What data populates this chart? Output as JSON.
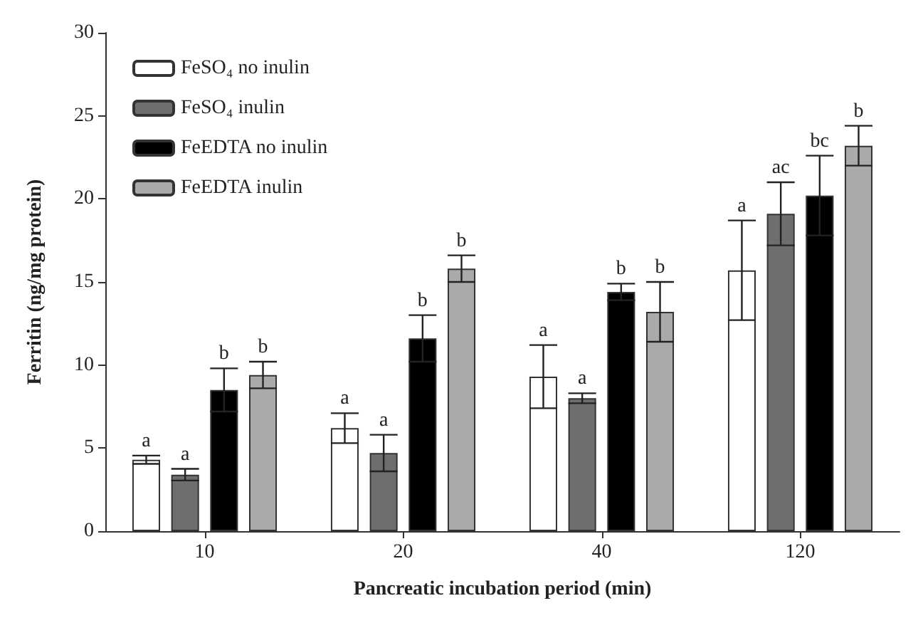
{
  "chart_data": {
    "type": "bar",
    "xlabel": "Pancreatic incubation period (min)",
    "ylabel": "Ferritin (ng/mg protein)",
    "categories": [
      "10",
      "20",
      "40",
      "120"
    ],
    "series": [
      {
        "name": "FeSO₄ no inulin",
        "color": "#ffffff",
        "values": [
          4.3,
          6.2,
          9.3,
          15.7
        ],
        "errors": [
          0.25,
          0.9,
          1.9,
          3.0
        ],
        "value_labels": [
          "a",
          "a",
          "a",
          "a"
        ]
      },
      {
        "name": "FeSO₄ inulin",
        "color": "#6e6e6e",
        "values": [
          3.4,
          4.7,
          8.0,
          19.1
        ],
        "errors": [
          0.35,
          1.1,
          0.3,
          1.9
        ],
        "value_labels": [
          "a",
          "a",
          "a",
          "ac"
        ]
      },
      {
        "name": "FeEDTA no inulin",
        "color": "#000000",
        "values": [
          8.5,
          11.6,
          14.4,
          20.2
        ],
        "errors": [
          1.3,
          1.4,
          0.5,
          2.4
        ],
        "value_labels": [
          "b",
          "b",
          "b",
          "bc"
        ]
      },
      {
        "name": "FeEDTA inulin",
        "color": "#aaaaaa",
        "values": [
          9.4,
          15.8,
          13.2,
          23.2
        ],
        "errors": [
          0.8,
          0.8,
          1.8,
          1.2
        ],
        "value_labels": [
          "b",
          "b",
          "b",
          "b"
        ]
      }
    ],
    "ylim": [
      0,
      30
    ],
    "yticks": [
      0,
      5,
      10,
      15,
      20,
      25,
      30
    ],
    "grid": false,
    "legend": "top left"
  }
}
